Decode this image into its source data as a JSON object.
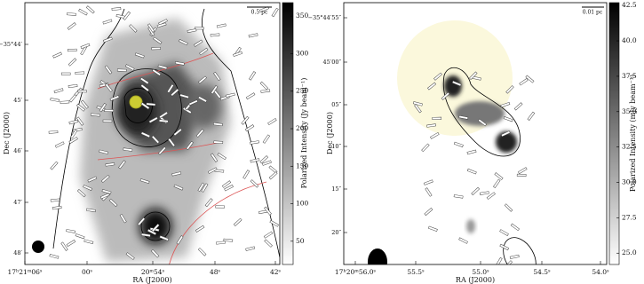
{
  "panels": [
    {
      "scale_bar": "0.5 pc",
      "x_ticks": [
        "17ʰ21ᵐ06ˢ",
        "00ˢ",
        "20ᵐ54ˢ",
        "48ˢ",
        "42ˢ"
      ],
      "y_ticks": [
        "−35°44′",
        "45′",
        "46′",
        "47′",
        "48′"
      ],
      "x_label": "RA (J2000)",
      "y_label": "Dec (J2000)",
      "colorbar": {
        "label": "Polarized Intensity (Jy beam⁻¹)",
        "lim": [
          19,
          368
        ],
        "ticks": [
          50,
          100,
          150,
          200,
          250,
          300,
          350
        ]
      }
    },
    {
      "scale_bar": "0.01 pc",
      "x_ticks": [
        "17ʰ20ᵐ56.0ˢ",
        "55.5ˢ",
        "55.0ˢ",
        "54.5ˢ",
        "54.0ˢ"
      ],
      "y_ticks": [
        "−35°44′55″",
        "45′00″",
        "05″",
        "10″",
        "15″",
        "20″"
      ],
      "x_label": "RA (J2000)",
      "y_label": "Dec (J2000)",
      "colorbar": {
        "label": "Polarized Intensity (mJy beam⁻¹)",
        "lim": [
          24.2,
          42.7
        ],
        "ticks": [
          {
            "value": 25,
            "label": "25.0"
          },
          27.5,
          {
            "value": 30,
            "label": "30.0"
          },
          32.5,
          {
            "value": 35,
            "label": "35.0"
          },
          37.5,
          {
            "value": 40,
            "label": "40.0"
          },
          42.5
        ]
      }
    }
  ]
}
